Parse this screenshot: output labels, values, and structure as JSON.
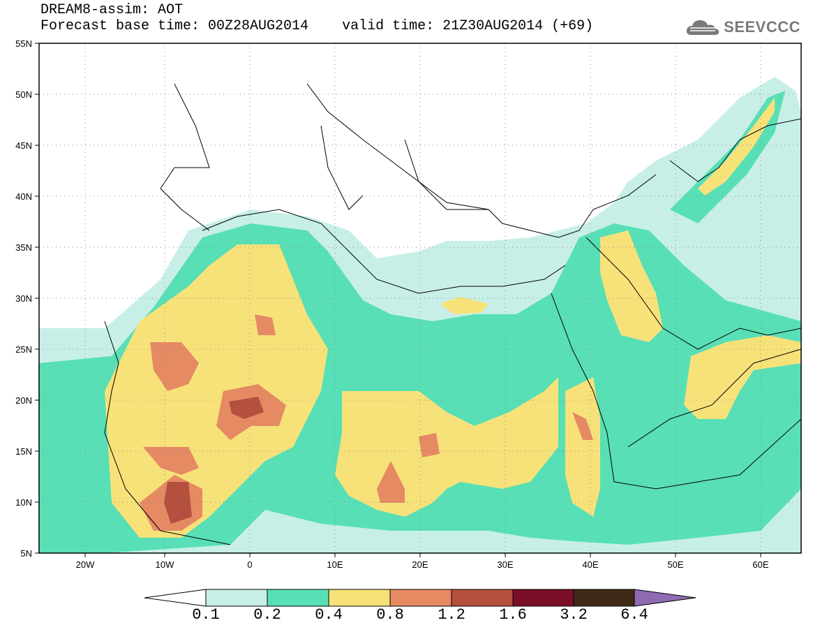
{
  "header": {
    "title_line1": "DREAM8-assim: AOT",
    "title_line2": "Forecast base time: 00Z28AUG2014    valid time: 21Z30AUG2014 (+69)",
    "logo_text": "SEEVCCC"
  },
  "map": {
    "variable": "AOT",
    "lon_range": [
      -25,
      65
    ],
    "lat_range": [
      5,
      55
    ],
    "lat_ticks": [
      "55N",
      "50N",
      "45N",
      "40N",
      "35N",
      "30N",
      "25N",
      "20N",
      "15N",
      "10N",
      "5N"
    ],
    "lon_ticks": [
      "20W",
      "10W",
      "0",
      "10E",
      "20E",
      "30E",
      "40E",
      "50E",
      "60E"
    ],
    "grid": "dotted"
  },
  "colorbar": {
    "levels": [
      "0.1",
      "0.2",
      "0.4",
      "0.8",
      "1.2",
      "1.6",
      "3.2",
      "6.4"
    ],
    "colors": {
      "below": "#ffffff",
      "c1": "#c7efe8",
      "c2": "#58dfb6",
      "c3": "#f7e27a",
      "c4": "#e58a63",
      "c5": "#b54f3e",
      "c6": "#7a0f2a",
      "c7": "#3f2a17",
      "above": "#8f6bb2"
    }
  }
}
